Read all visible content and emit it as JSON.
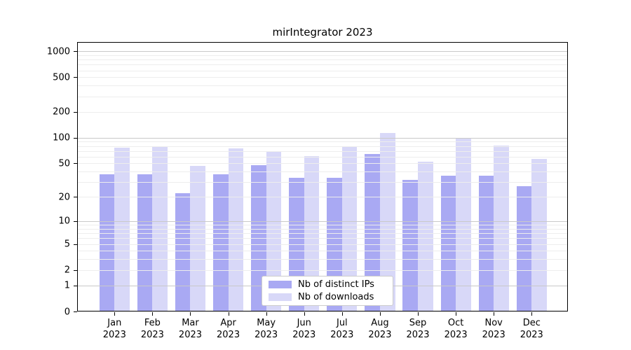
{
  "title": "mirIntegrator 2023",
  "chart_data": {
    "type": "bar",
    "title": "mirIntegrator 2023",
    "categories": [
      "Jan",
      "Feb",
      "Mar",
      "Apr",
      "May",
      "Jun",
      "Jul",
      "Aug",
      "Sep",
      "Oct",
      "Nov",
      "Dec"
    ],
    "year_label": "2023",
    "series": [
      {
        "name": "Nb of distinct IPs",
        "color": "#a9a9f3",
        "values": [
          37,
          37,
          22,
          37,
          48,
          34,
          34,
          64,
          32,
          36,
          36,
          27
        ]
      },
      {
        "name": "Nb of downloads",
        "color": "#d8d8f8",
        "values": [
          76,
          78,
          47,
          75,
          69,
          61,
          79,
          114,
          52,
          100,
          81,
          56
        ]
      }
    ],
    "yscale": "log10(1+x)",
    "yticks": [
      "0",
      "1",
      "2",
      "5",
      "10",
      "20",
      "50",
      "100",
      "200",
      "500",
      "1000"
    ],
    "ylim": [
      0,
      1200
    ],
    "grid": "horizontal",
    "legend_position": "bottom-center",
    "colors": {
      "background": "#ffffff",
      "axis": "#000000",
      "major_grid": "#c9c9c9",
      "minor_grid": "#ededed",
      "text": "#000000"
    }
  }
}
